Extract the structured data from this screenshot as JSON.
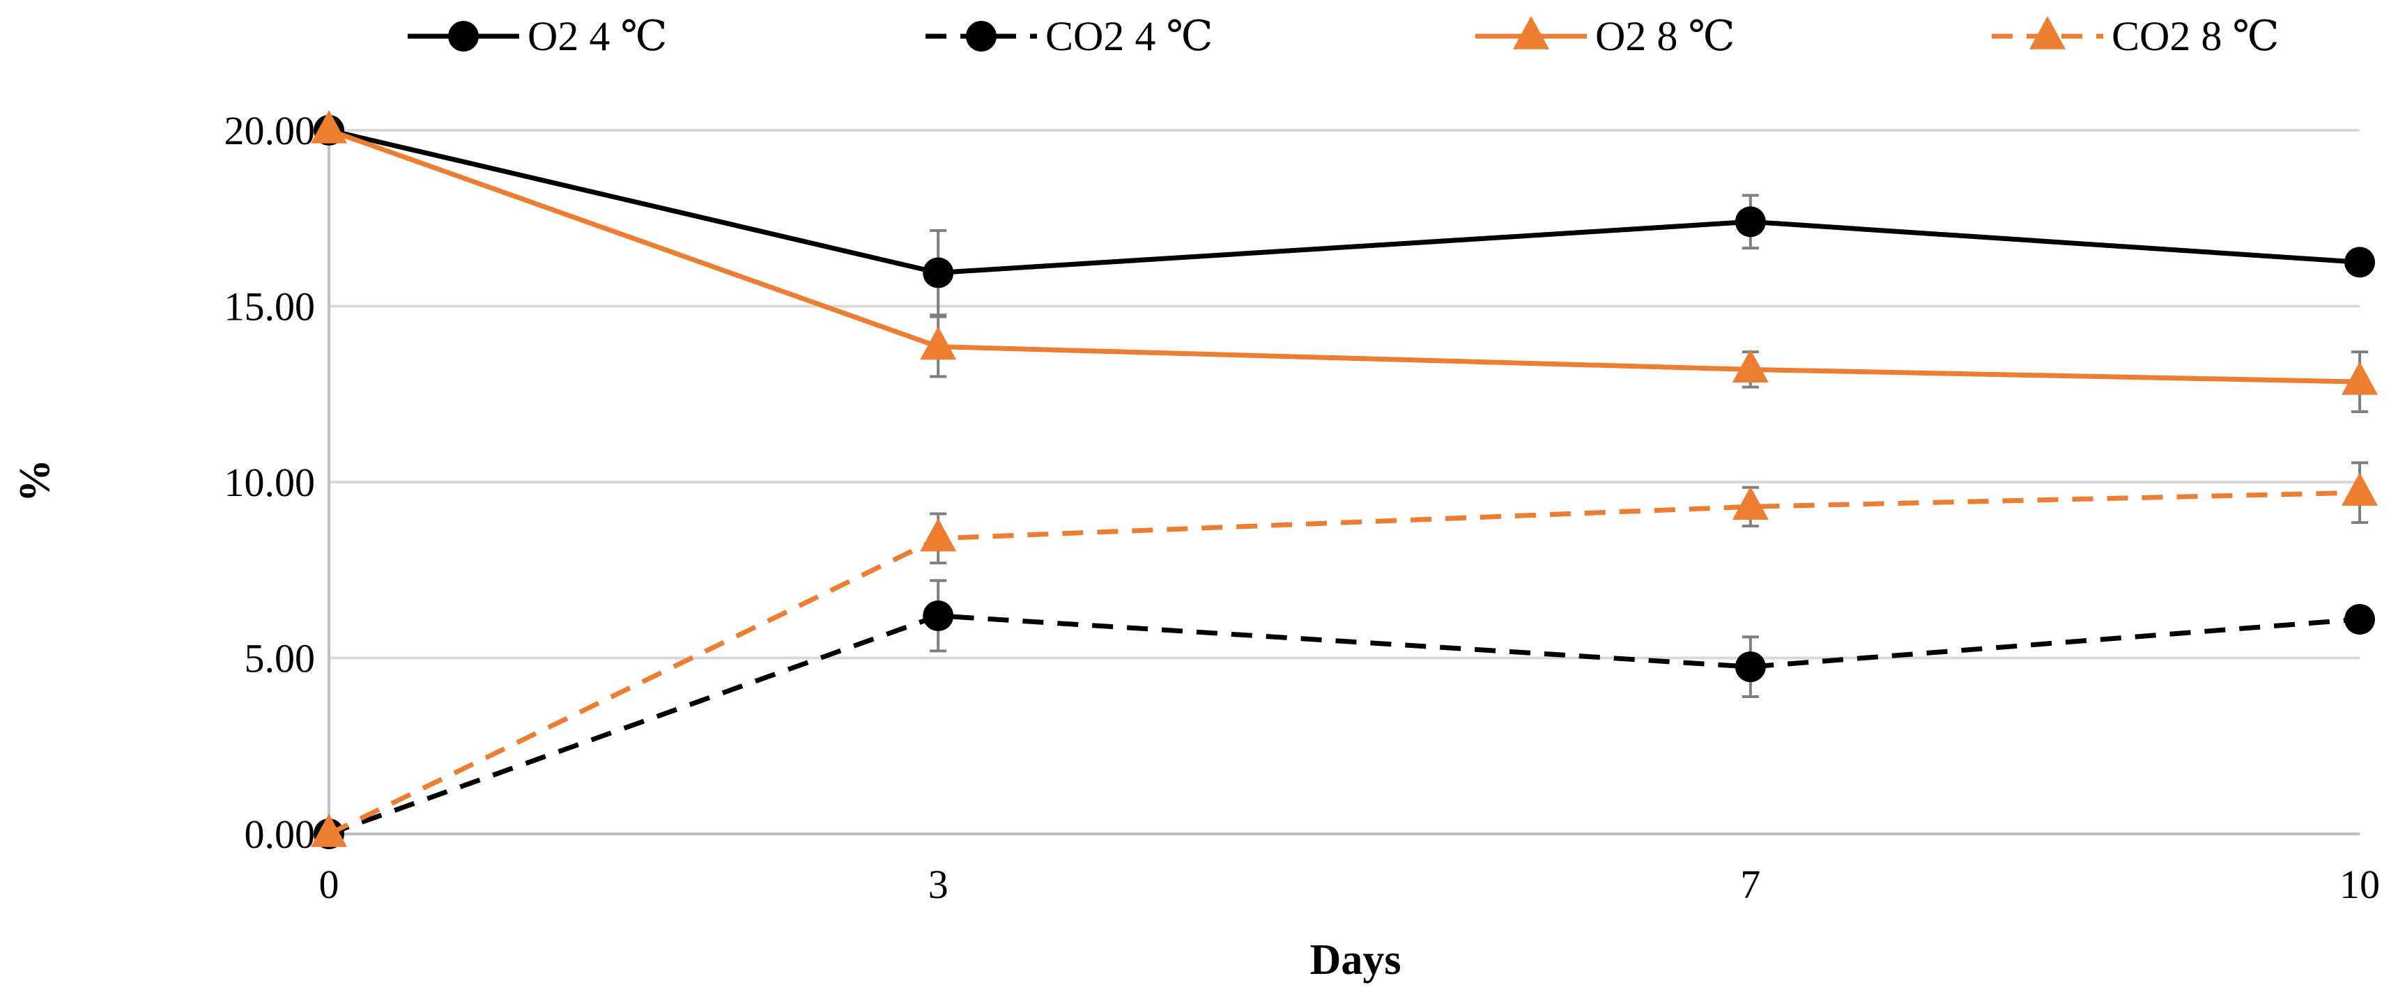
{
  "chart_data": {
    "type": "line",
    "title": "",
    "xlabel": "Days",
    "ylabel": "%",
    "x": [
      0,
      3,
      7,
      10
    ],
    "x_tick_labels": [
      "0",
      "3",
      "7",
      "10"
    ],
    "y_tick_labels": [
      "0.00",
      "5.00",
      "10.00",
      "15.00",
      "20.00"
    ],
    "y_ticks": [
      0,
      5,
      10,
      15,
      20
    ],
    "ylim": [
      0,
      20
    ],
    "xlim": [
      0,
      10
    ],
    "grid": true,
    "legend_position": "top",
    "series": [
      {
        "name": "O2 4 ℃",
        "values": [
          20.0,
          15.95,
          17.4,
          16.25
        ],
        "errors": [
          0.0,
          1.2,
          0.75,
          0.0
        ],
        "color": "#000000",
        "line_style": "solid",
        "marker": "circle"
      },
      {
        "name": "CO2 4 ℃",
        "values": [
          0.0,
          6.2,
          4.75,
          6.1
        ],
        "errors": [
          0.0,
          1.0,
          0.85,
          0.0
        ],
        "color": "#000000",
        "line_style": "dashed",
        "marker": "circle"
      },
      {
        "name": "O2 8 ℃",
        "values": [
          20.0,
          13.85,
          13.2,
          12.85
        ],
        "errors": [
          0.0,
          0.85,
          0.5,
          0.85
        ],
        "color": "#ED7D31",
        "line_style": "solid",
        "marker": "triangle"
      },
      {
        "name": "CO2 8 ℃",
        "values": [
          0.0,
          8.4,
          9.3,
          9.7
        ],
        "errors": [
          0.0,
          0.7,
          0.55,
          0.85
        ],
        "color": "#ED7D31",
        "line_style": "dashed",
        "marker": "triangle"
      }
    ]
  }
}
